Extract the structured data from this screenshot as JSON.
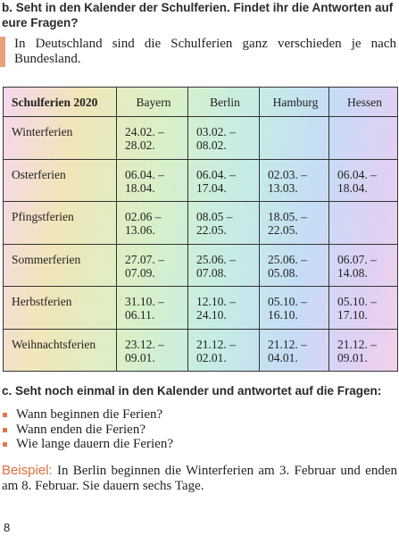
{
  "header": {
    "title": "b. Seht in den Kalender der Schulferien. Findet ihr die Antworten auf",
    "title_cont": "eure Fragen?"
  },
  "note": "In Deutschland sind die Schulferien ganz verschieden je nach Bundesland.",
  "table": {
    "columns": [
      "Schulferien 2020",
      "Bayern",
      "Berlin",
      "Hamburg",
      "Hessen"
    ],
    "rows": [
      [
        "Winterferien",
        [
          "24.02. –",
          "28.02."
        ],
        [
          "03.02. –",
          "08.02."
        ],
        null,
        null
      ],
      [
        "Osterferien",
        [
          "06.04. –",
          "18.04."
        ],
        [
          "06.04. –",
          "17.04."
        ],
        [
          "02.03. –",
          "13.03."
        ],
        [
          "06.04. –",
          "18.04."
        ]
      ],
      [
        "Pfingstferien",
        [
          "02.06 –",
          "13.06."
        ],
        [
          "08.05 –",
          "22.05."
        ],
        [
          "18.05. –",
          "22.05."
        ],
        null
      ],
      [
        "Sommerferien",
        [
          "27.07. –",
          "07.09."
        ],
        [
          "25.06. –",
          "07.08."
        ],
        [
          "25.06. –",
          "05.08."
        ],
        [
          "06.07. –",
          "14.08."
        ]
      ],
      [
        "Herbstferien",
        [
          "31.10. –",
          "06.11."
        ],
        [
          "12.10. –",
          "24.10."
        ],
        [
          "05.10. –",
          "16.10."
        ],
        [
          "05.10. –",
          "17.10."
        ]
      ],
      [
        "Weihnachtsferien",
        [
          "23.12. –",
          "09.01."
        ],
        [
          "21.12. –",
          "02.01."
        ],
        [
          "21.12. –",
          "04.01."
        ],
        [
          "21.12. –",
          "09.01."
        ]
      ]
    ]
  },
  "task_c": {
    "title": "c. Seht noch einmal in den Kalender und antwortet auf die Fragen:",
    "questions": [
      "Wann beginnen die Ferien?",
      "Wann enden die Ferien?",
      "Wie lange dauern die Ferien?"
    ]
  },
  "example": {
    "label": "Beispiel:",
    "text": "In Berlin beginnen die Winterferien am 3. Februar und enden am 8. Februar. Sie dauern sechs Tage."
  },
  "page_number": "8"
}
